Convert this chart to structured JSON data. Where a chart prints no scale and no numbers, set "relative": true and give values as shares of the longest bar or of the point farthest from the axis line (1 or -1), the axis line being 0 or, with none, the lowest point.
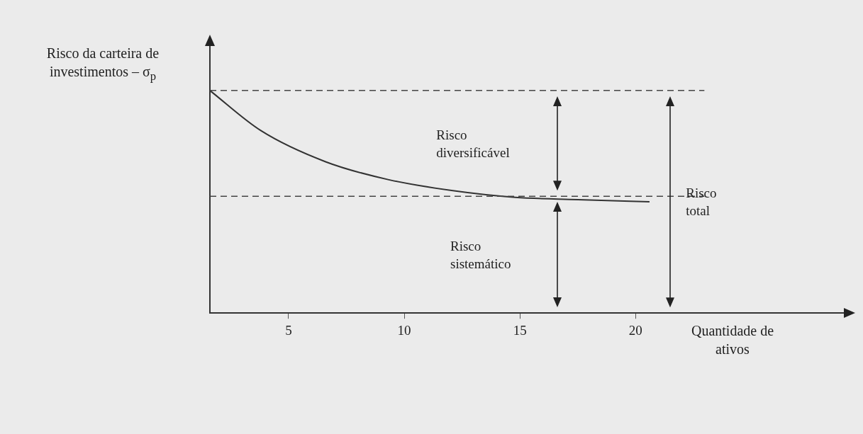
{
  "chart_data": {
    "type": "line",
    "relative": true,
    "xlabel": "Quantidade de ativos",
    "ylabel": "Risco da carteira de investimentos – σ$_{p}$",
    "x": [
      1.6,
      3.8,
      6.6,
      9.3,
      12.1,
      14.8,
      17.5,
      20.6
    ],
    "series": [
      {
        "color": "#333333",
        "values": [
          1.0,
          0.82,
          0.68,
          0.6,
          0.55,
          0.52,
          0.51,
          0.5
        ]
      }
    ],
    "xlim": [
      1.6,
      29
    ],
    "xticks": [
      5,
      10,
      15,
      20
    ],
    "grid": false,
    "marker": "none",
    "line_style": "solid",
    "ref_lines": [
      {
        "axis": "y",
        "value": 1,
        "line_style": "dashed",
        "color": "#444444"
      },
      {
        "axis": "y",
        "value": 0.525,
        "line_style": "dashed",
        "color": "#444444"
      }
    ],
    "annotations": [
      "Risco diversificável",
      "Risco sistemático",
      "Risco total"
    ]
  }
}
